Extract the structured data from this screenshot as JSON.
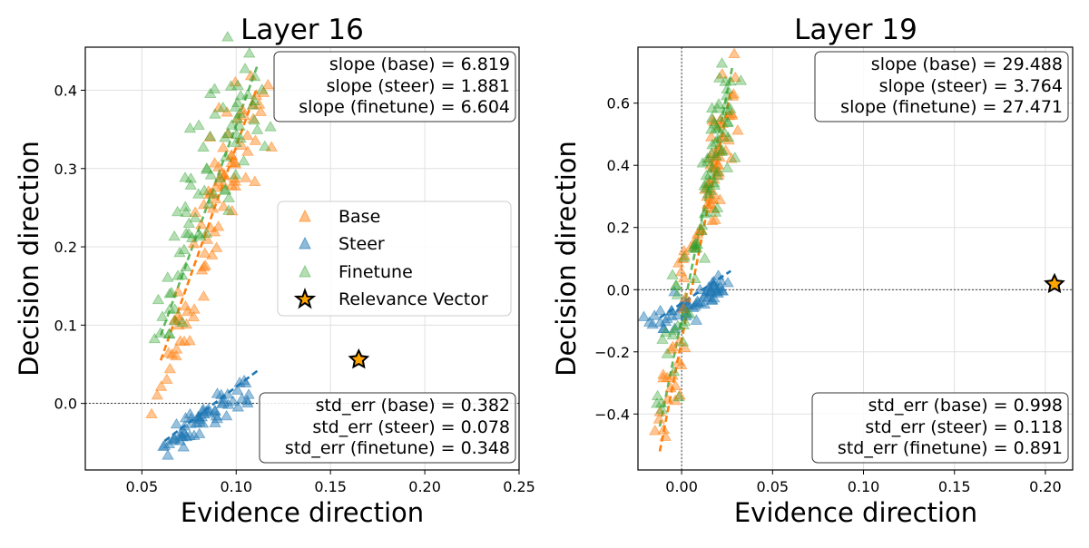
{
  "chart_data": [
    {
      "type": "scatter",
      "title": "Layer 16",
      "xlabel": "Evidence direction",
      "ylabel": "Decision direction",
      "xlim": [
        0.02,
        0.25
      ],
      "ylim": [
        -0.085,
        0.455
      ],
      "xticks": [
        0.05,
        0.1,
        0.15,
        0.2,
        0.25
      ],
      "xtick_labels": [
        "0.05",
        "0.10",
        "0.15",
        "0.20",
        "0.25"
      ],
      "yticks": [
        0.0,
        0.1,
        0.2,
        0.3,
        0.4
      ],
      "ytick_labels": [
        "0.0",
        "0.1",
        "0.2",
        "0.3",
        "0.4"
      ],
      "grid": true,
      "zero_line": "horizontal",
      "series": [
        {
          "name": "Base",
          "color": "#ff7f0e",
          "clusters": [
            {
              "n": 45,
              "x_from": 0.085,
              "x_to": 0.112,
              "y_from": 0.265,
              "y_to": 0.375,
              "jitter": [
                0.006,
                0.035
              ]
            },
            {
              "n": 25,
              "x_from": 0.069,
              "x_to": 0.09,
              "y_from": 0.1,
              "y_to": 0.25,
              "jitter": [
                0.004,
                0.025
              ]
            },
            {
              "n": 15,
              "x_from": 0.06,
              "x_to": 0.075,
              "y_from": 0.03,
              "y_to": 0.1,
              "jitter": [
                0.004,
                0.018
              ]
            }
          ],
          "fit_line": {
            "x": [
              0.06,
              0.111
            ],
            "y": [
              0.055,
              0.403
            ]
          }
        },
        {
          "name": "Steer",
          "color": "#1f77b4",
          "clusters": [
            {
              "n": 60,
              "x_from": 0.06,
              "x_to": 0.105,
              "y_from": -0.058,
              "y_to": 0.02,
              "jitter": [
                0.004,
                0.01
              ]
            }
          ],
          "fit_line": {
            "x": [
              0.062,
              0.112
            ],
            "y": [
              -0.048,
              0.043
            ]
          }
        },
        {
          "name": "Finetune",
          "color": "#2ca02c",
          "clusters": [
            {
              "n": 45,
              "x_from": 0.083,
              "x_to": 0.112,
              "y_from": 0.285,
              "y_to": 0.39,
              "jitter": [
                0.006,
                0.035
              ]
            },
            {
              "n": 25,
              "x_from": 0.066,
              "x_to": 0.09,
              "y_from": 0.16,
              "y_to": 0.29,
              "jitter": [
                0.004,
                0.025
              ]
            },
            {
              "n": 12,
              "x_from": 0.06,
              "x_to": 0.073,
              "y_from": 0.07,
              "y_to": 0.16,
              "jitter": [
                0.004,
                0.018
              ]
            }
          ],
          "fit_line": {
            "x": [
              0.06,
              0.111
            ],
            "y": [
              0.087,
              0.43
            ]
          }
        }
      ],
      "relevance_vector": {
        "x": 0.165,
        "y": 0.056
      },
      "top_box": [
        "slope (base) = 6.819",
        "slope (steer) = 1.881",
        "slope (finetune) = 6.604"
      ],
      "bottom_box": [
        "std_err (base) = 0.382",
        "std_err (steer) = 0.078",
        "std_err (finetune) = 0.348"
      ],
      "legend": {
        "position": "center-right",
        "entries": [
          "Base",
          "Steer",
          "Finetune",
          "Relevance Vector"
        ]
      }
    },
    {
      "type": "scatter",
      "title": "Layer 19",
      "xlabel": "Evidence direction",
      "ylabel": "Decision direction",
      "xlim": [
        -0.024,
        0.215
      ],
      "ylim": [
        -0.58,
        0.78
      ],
      "xticks": [
        0.0,
        0.05,
        0.1,
        0.15,
        0.2
      ],
      "xtick_labels": [
        "0.00",
        "0.05",
        "0.10",
        "0.15",
        "0.20"
      ],
      "yticks": [
        -0.4,
        -0.2,
        0.0,
        0.2,
        0.4,
        0.6
      ],
      "ytick_labels": [
        "−0.4",
        "−0.2",
        "0.0",
        "0.2",
        "0.4",
        "0.6"
      ],
      "grid": true,
      "zero_line": "both",
      "series": [
        {
          "name": "Base",
          "color": "#ff7f0e",
          "clusters": [
            {
              "n": 45,
              "x_from": 0.014,
              "x_to": 0.027,
              "y_from": 0.28,
              "y_to": 0.62,
              "jitter": [
                0.003,
                0.06
              ]
            },
            {
              "n": 20,
              "x_from": 0.0,
              "x_to": 0.016,
              "y_from": 0.0,
              "y_to": 0.3,
              "jitter": [
                0.003,
                0.04
              ]
            },
            {
              "n": 20,
              "x_from": -0.012,
              "x_to": 0.0,
              "y_from": -0.46,
              "y_to": -0.15,
              "jitter": [
                0.003,
                0.04
              ]
            }
          ],
          "fit_line": {
            "x": [
              -0.012,
              0.027
            ],
            "y": [
              -0.52,
              0.64
            ]
          }
        },
        {
          "name": "Steer",
          "color": "#1f77b4",
          "clusters": [
            {
              "n": 60,
              "x_from": -0.014,
              "x_to": 0.023,
              "y_from": -0.105,
              "y_to": 0.02,
              "jitter": [
                0.004,
                0.015
              ]
            }
          ],
          "fit_line": {
            "x": [
              -0.012,
              0.027
            ],
            "y": [
              -0.09,
              0.06
            ]
          }
        },
        {
          "name": "Finetune",
          "color": "#2ca02c",
          "clusters": [
            {
              "n": 45,
              "x_from": 0.014,
              "x_to": 0.027,
              "y_from": 0.3,
              "y_to": 0.66,
              "jitter": [
                0.003,
                0.06
              ]
            },
            {
              "n": 20,
              "x_from": 0.0,
              "x_to": 0.016,
              "y_from": 0.0,
              "y_to": 0.32,
              "jitter": [
                0.003,
                0.04
              ]
            },
            {
              "n": 18,
              "x_from": -0.012,
              "x_to": 0.0,
              "y_from": -0.4,
              "y_to": -0.05,
              "jitter": [
                0.003,
                0.04
              ]
            }
          ],
          "fit_line": {
            "x": [
              -0.012,
              0.028
            ],
            "y": [
              -0.44,
              0.72
            ]
          }
        }
      ],
      "relevance_vector": {
        "x": 0.205,
        "y": 0.018
      },
      "top_box": [
        "slope (base) = 29.488",
        "slope (steer) = 3.764",
        "slope (finetune) = 27.471"
      ],
      "bottom_box": [
        "std_err (base) = 0.998",
        "std_err (steer) = 0.118",
        "std_err (finetune) = 0.891"
      ]
    }
  ]
}
